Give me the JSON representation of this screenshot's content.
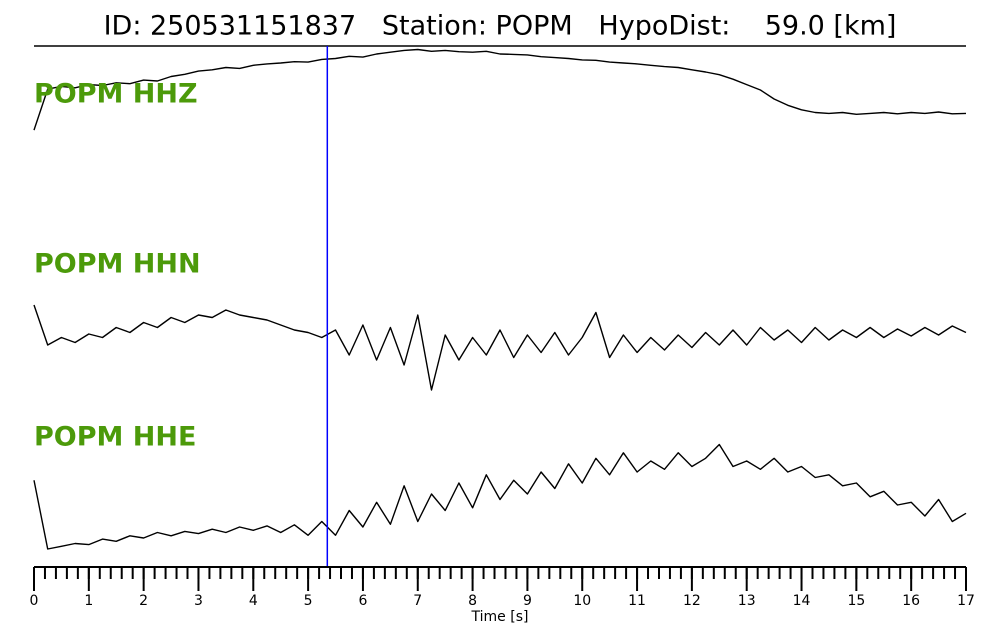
{
  "chart_data": {
    "type": "seismogram",
    "title": "ID: 250531151837   Station: POPM   HypoDist:    59.0 [km]",
    "xlabel": "Time [s]",
    "xlim": [
      0,
      17
    ],
    "xticks": [
      0,
      1,
      2,
      3,
      4,
      5,
      6,
      7,
      8,
      9,
      10,
      11,
      12,
      13,
      14,
      15,
      16,
      17
    ],
    "minor_tick_step": 0.2,
    "pick_time": 5.35,
    "pick_color": "#0000ff",
    "label_color": "#4c9a0a",
    "x": [
      0,
      0.25,
      0.5,
      0.75,
      1,
      1.25,
      1.5,
      1.75,
      2,
      2.25,
      2.5,
      2.75,
      3,
      3.25,
      3.5,
      3.75,
      4,
      4.25,
      4.5,
      4.75,
      5,
      5.25,
      5.5,
      5.75,
      6,
      6.25,
      6.5,
      6.75,
      7,
      7.25,
      7.5,
      7.75,
      8,
      8.25,
      8.5,
      8.75,
      9,
      9.25,
      9.5,
      9.75,
      10,
      10.25,
      10.5,
      10.75,
      11,
      11.25,
      11.5,
      11.75,
      12,
      12.25,
      12.5,
      12.75,
      13,
      13.25,
      13.5,
      13.75,
      14,
      14.25,
      14.5,
      14.75,
      15,
      15.25,
      15.5,
      15.75,
      16,
      16.25,
      16.5,
      16.75,
      17
    ],
    "series": [
      {
        "name": "POPM HHZ",
        "color": "#000000",
        "ylim": [
          -1,
          1
        ],
        "values": [
          -0.89,
          0.02,
          0.08,
          0.05,
          0.12,
          0.1,
          0.16,
          0.14,
          0.22,
          0.2,
          0.3,
          0.35,
          0.42,
          0.45,
          0.5,
          0.48,
          0.55,
          0.58,
          0.6,
          0.63,
          0.62,
          0.68,
          0.7,
          0.75,
          0.73,
          0.8,
          0.84,
          0.88,
          0.9,
          0.86,
          0.88,
          0.85,
          0.84,
          0.86,
          0.8,
          0.79,
          0.78,
          0.74,
          0.72,
          0.7,
          0.67,
          0.66,
          0.62,
          0.6,
          0.58,
          0.55,
          0.52,
          0.5,
          0.45,
          0.4,
          0.34,
          0.24,
          0.12,
          0.0,
          -0.2,
          -0.34,
          -0.44,
          -0.5,
          -0.52,
          -0.5,
          -0.54,
          -0.52,
          -0.5,
          -0.53,
          -0.5,
          -0.52,
          -0.49,
          -0.53,
          -0.52
        ]
      },
      {
        "name": "POPM HHN",
        "color": "#000000",
        "ylim": [
          -1,
          1
        ],
        "values": [
          0.7,
          -0.1,
          0.05,
          -0.05,
          0.12,
          0.05,
          0.25,
          0.15,
          0.35,
          0.25,
          0.45,
          0.35,
          0.5,
          0.45,
          0.6,
          0.5,
          0.45,
          0.4,
          0.3,
          0.2,
          0.15,
          0.05,
          0.2,
          -0.3,
          0.3,
          -0.4,
          0.25,
          -0.5,
          0.5,
          -1.0,
          0.1,
          -0.4,
          0.05,
          -0.3,
          0.2,
          -0.35,
          0.1,
          -0.25,
          0.15,
          -0.3,
          0.05,
          0.55,
          -0.35,
          0.1,
          -0.25,
          0.05,
          -0.2,
          0.1,
          -0.15,
          0.15,
          -0.1,
          0.2,
          -0.1,
          0.25,
          0.0,
          0.2,
          -0.05,
          0.25,
          0.0,
          0.2,
          0.05,
          0.25,
          0.05,
          0.22,
          0.08,
          0.25,
          0.1,
          0.28,
          0.15
        ]
      },
      {
        "name": "POPM HHE",
        "color": "#000000",
        "ylim": [
          -1,
          1
        ],
        "values": [
          0.45,
          -0.8,
          -0.75,
          -0.7,
          -0.72,
          -0.62,
          -0.66,
          -0.56,
          -0.6,
          -0.5,
          -0.56,
          -0.48,
          -0.52,
          -0.44,
          -0.5,
          -0.4,
          -0.46,
          -0.38,
          -0.5,
          -0.36,
          -0.55,
          -0.3,
          -0.55,
          -0.1,
          -0.4,
          0.05,
          -0.35,
          0.35,
          -0.3,
          0.2,
          -0.1,
          0.4,
          -0.05,
          0.55,
          0.1,
          0.45,
          0.2,
          0.6,
          0.3,
          0.75,
          0.4,
          0.85,
          0.55,
          0.95,
          0.6,
          0.8,
          0.65,
          0.95,
          0.7,
          0.85,
          1.1,
          0.7,
          0.8,
          0.65,
          0.85,
          0.6,
          0.7,
          0.5,
          0.55,
          0.35,
          0.4,
          0.15,
          0.25,
          0.0,
          0.05,
          -0.2,
          0.1,
          -0.3,
          -0.15
        ]
      }
    ]
  }
}
